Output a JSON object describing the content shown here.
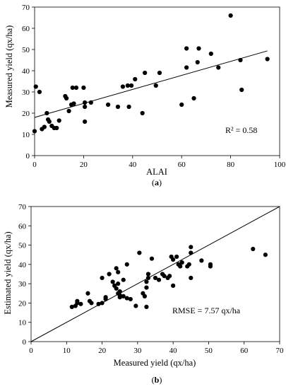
{
  "chart_data": [
    {
      "type": "scatter",
      "panel_label": "a",
      "title": "",
      "xlabel": "ALAI",
      "ylabel": "Measured yield (qx/ha)",
      "xlim": [
        0,
        100
      ],
      "ylim": [
        0,
        70
      ],
      "xticks": [
        0,
        20,
        40,
        60,
        80,
        100
      ],
      "yticks": [
        0,
        10,
        20,
        30,
        40,
        50,
        60,
        70
      ],
      "grid": false,
      "annotation": "R² = 0.58",
      "trendline": {
        "intercept": 18.0,
        "slope": 0.33,
        "x_range": [
          0,
          95
        ]
      },
      "series": [
        {
          "points": [
            [
              0,
              11.5
            ],
            [
              0.5,
              32.5
            ],
            [
              2,
              30
            ],
            [
              3,
              12.5
            ],
            [
              4,
              13.5
            ],
            [
              5,
              20
            ],
            [
              5.5,
              17
            ],
            [
              6,
              16
            ],
            [
              7,
              14
            ],
            [
              8,
              13
            ],
            [
              9,
              13
            ],
            [
              10,
              16.5
            ],
            [
              12.5,
              28
            ],
            [
              13,
              27
            ],
            [
              14,
              21
            ],
            [
              15,
              24
            ],
            [
              15.5,
              32
            ],
            [
              16,
              24.5
            ],
            [
              17,
              32
            ],
            [
              20,
              32
            ],
            [
              20.5,
              23
            ],
            [
              20.5,
              25
            ],
            [
              20.5,
              16
            ],
            [
              23,
              25
            ],
            [
              30,
              24
            ],
            [
              34,
              23
            ],
            [
              36,
              32.5
            ],
            [
              38,
              33
            ],
            [
              38.5,
              23
            ],
            [
              39.5,
              33
            ],
            [
              41,
              36
            ],
            [
              44,
              20
            ],
            [
              45,
              39
            ],
            [
              49.5,
              33
            ],
            [
              51,
              39
            ],
            [
              60,
              24
            ],
            [
              62,
              41.5
            ],
            [
              62,
              50.5
            ],
            [
              65,
              27
            ],
            [
              66.5,
              44
            ],
            [
              67,
              50.5
            ],
            [
              72,
              48
            ],
            [
              75,
              41.5
            ],
            [
              80,
              66
            ],
            [
              84,
              45
            ],
            [
              84.5,
              31
            ],
            [
              95,
              45.5
            ]
          ]
        }
      ]
    },
    {
      "type": "scatter",
      "panel_label": "b",
      "title": "",
      "xlabel": "Measured yield (qx/ha)",
      "ylabel": "Estimated yield (qx/ha)",
      "xlim": [
        0,
        70
      ],
      "ylim": [
        0,
        70
      ],
      "xticks": [
        0,
        10,
        20,
        30,
        40,
        50,
        60,
        70
      ],
      "yticks": [
        0,
        10,
        20,
        30,
        40,
        50,
        60,
        70
      ],
      "grid": false,
      "annotation": "RMSE = 7.57 qx/ha",
      "reference_line": "1:1",
      "series": [
        {
          "points": [
            [
              11.5,
              18
            ],
            [
              12.5,
              18.5
            ],
            [
              13,
              20
            ],
            [
              13,
              21
            ],
            [
              14,
              19.5
            ],
            [
              16,
              25
            ],
            [
              16.5,
              21
            ],
            [
              17,
              20
            ],
            [
              19,
              19.5
            ],
            [
              20,
              20
            ],
            [
              20,
              33
            ],
            [
              21,
              23
            ],
            [
              21,
              22
            ],
            [
              22,
              35
            ],
            [
              23,
              31
            ],
            [
              23.5,
              29
            ],
            [
              24,
              27.5
            ],
            [
              24,
              38
            ],
            [
              24.5,
              36
            ],
            [
              24.5,
              30
            ],
            [
              24.5,
              25
            ],
            [
              25,
              24
            ],
            [
              25,
              23
            ],
            [
              25,
              26
            ],
            [
              26,
              23.5
            ],
            [
              26,
              32
            ],
            [
              27,
              40
            ],
            [
              27,
              22.5
            ],
            [
              28,
              22
            ],
            [
              29.5,
              18.5
            ],
            [
              30.5,
              46
            ],
            [
              31.5,
              25
            ],
            [
              32,
              23.5
            ],
            [
              32.5,
              28
            ],
            [
              32.5,
              31
            ],
            [
              33,
              33
            ],
            [
              33,
              35
            ],
            [
              32.5,
              18
            ],
            [
              34,
              43
            ],
            [
              35,
              33
            ],
            [
              36,
              32
            ],
            [
              37,
              35
            ],
            [
              37.5,
              34
            ],
            [
              38.5,
              33
            ],
            [
              39,
              34
            ],
            [
              39.5,
              44
            ],
            [
              40,
              29
            ],
            [
              40,
              42.5
            ],
            [
              41,
              44
            ],
            [
              41.5,
              40
            ],
            [
              42,
              39
            ],
            [
              42.5,
              41
            ],
            [
              44,
              39
            ],
            [
              44.5,
              40
            ],
            [
              45,
              46
            ],
            [
              45,
              49
            ],
            [
              45,
              33
            ],
            [
              48,
              42
            ],
            [
              50.5,
              40
            ],
            [
              50.5,
              39
            ],
            [
              62.5,
              48
            ],
            [
              66,
              45
            ]
          ]
        }
      ]
    }
  ]
}
